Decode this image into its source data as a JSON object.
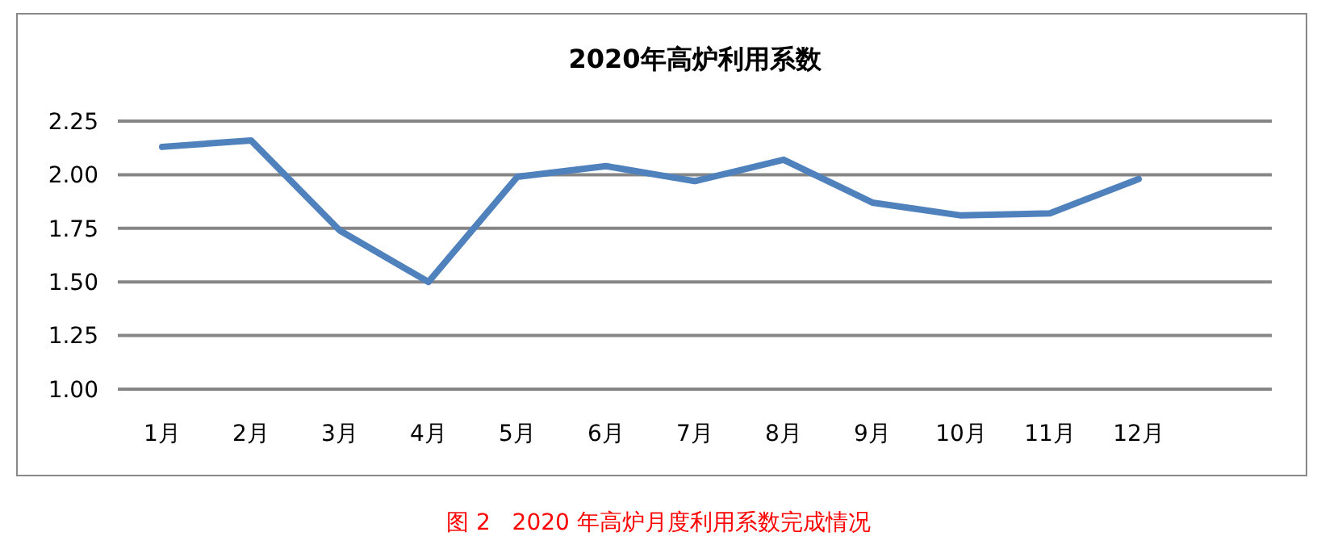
{
  "chart_data": {
    "type": "line",
    "title": "2020年高炉利用系数",
    "categories": [
      "1月",
      "2月",
      "3月",
      "4月",
      "5月",
      "6月",
      "7月",
      "8月",
      "9月",
      "10月",
      "11月",
      "12月",
      null
    ],
    "series": [
      {
        "color": "#4f81bd",
        "values": [
          2.13,
          2.16,
          1.74,
          1.5,
          1.99,
          2.04,
          1.97,
          2.07,
          1.87,
          1.81,
          1.82,
          1.98,
          null
        ]
      }
    ],
    "ylim": [
      1,
      2.25
    ],
    "yticks": [
      {
        "value": 1,
        "label": "1.00"
      },
      {
        "value": 1.25,
        "label": "1.25"
      },
      {
        "value": 1.5,
        "label": "1.50"
      },
      {
        "value": 1.75,
        "label": "1.75"
      },
      {
        "value": 2,
        "label": "2.00"
      },
      {
        "value": 2.25,
        "label": "2.25"
      }
    ],
    "grid": "y",
    "marker": "none",
    "line_style": "solid",
    "annotations": [
      "图 2   2020 年高炉月度利用系数完成情况"
    ]
  }
}
